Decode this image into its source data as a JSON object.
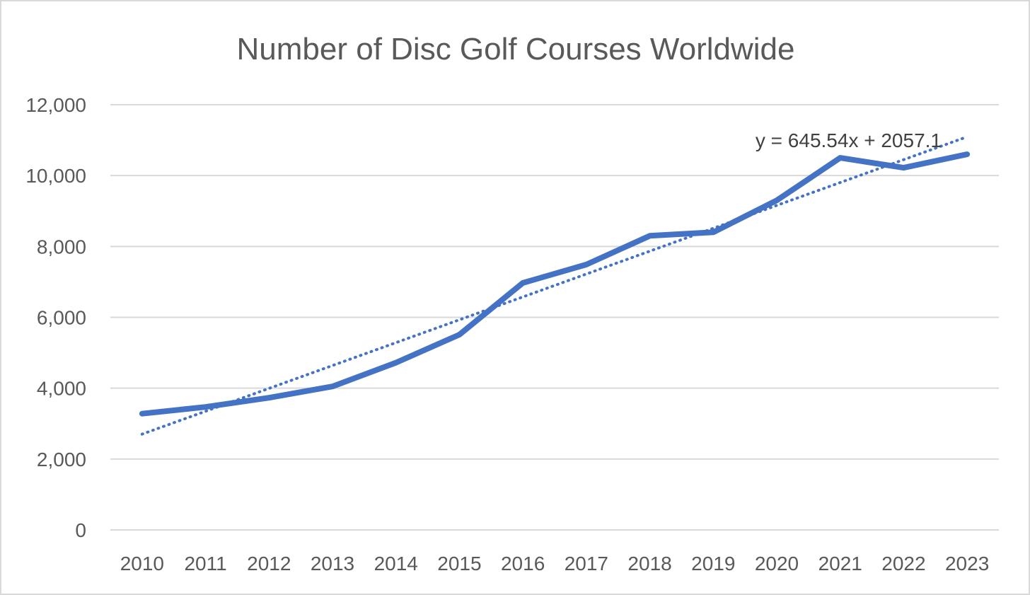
{
  "chart_data": {
    "type": "line",
    "title": "Number of Disc Golf Courses Worldwide",
    "xlabel": "",
    "ylabel": "",
    "categories": [
      "2010",
      "2011",
      "2012",
      "2013",
      "2014",
      "2015",
      "2016",
      "2017",
      "2018",
      "2019",
      "2020",
      "2021",
      "2022",
      "2023"
    ],
    "series": [
      {
        "values": [
          3280,
          3470,
          3730,
          4050,
          4720,
          5510,
          6970,
          7490,
          8300,
          8400,
          9300,
          10500,
          10220,
          10600
        ],
        "color": "#4472c4"
      }
    ],
    "trendline": {
      "type": "linear",
      "equation": "y = 645.54x + 2057.1",
      "slope": 645.54,
      "intercept": 2057.1,
      "color": "#4472c4",
      "style": "dotted"
    },
    "ylim": [
      0,
      12000
    ],
    "yticks": [
      0,
      2000,
      4000,
      6000,
      8000,
      10000,
      12000
    ],
    "ytick_labels": [
      "0",
      "2,000",
      "4,000",
      "6,000",
      "8,000",
      "10,000",
      "12,000"
    ],
    "grid": true,
    "legend": "none"
  }
}
